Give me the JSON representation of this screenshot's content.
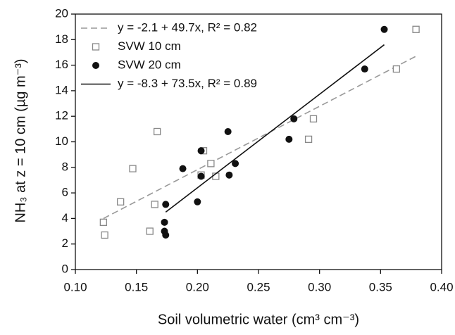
{
  "chart_data": {
    "type": "scatter",
    "x_label": "Soil volumetric water (cm³ cm⁻³)",
    "y_label": "NH₃ at z = 10 cm (µg m⁻³)",
    "xlim": [
      0.1,
      0.4
    ],
    "xticks": [
      {
        "value": 0.1,
        "label": "0.10"
      },
      {
        "value": 0.15,
        "label": "0.15"
      },
      {
        "value": 0.2,
        "label": "0.20"
      },
      {
        "value": 0.25,
        "label": "0.25"
      },
      {
        "value": 0.3,
        "label": "0.30"
      },
      {
        "value": 0.35,
        "label": "0.35"
      },
      {
        "value": 0.4,
        "label": "0.40"
      }
    ],
    "ylim": [
      0,
      20
    ],
    "yticks": [
      0,
      2,
      4,
      6,
      8,
      10,
      12,
      14,
      16,
      18,
      20
    ],
    "legend": "top-left",
    "series": [
      {
        "name": "y = -2.1 + 49.7x, R² = 0.82",
        "kind": "line",
        "style": "dashed",
        "color": "#999999",
        "x": [
          0.123,
          0.379
        ],
        "values": [
          4.0,
          16.7
        ]
      },
      {
        "name": "SVW 10 cm",
        "kind": "marker",
        "marker": "square-open",
        "color": "#888888",
        "x": [
          0.123,
          0.124,
          0.137,
          0.147,
          0.161,
          0.165,
          0.167,
          0.203,
          0.205,
          0.211,
          0.215,
          0.291,
          0.295,
          0.363,
          0.379
        ],
        "values": [
          3.7,
          2.7,
          5.3,
          7.9,
          3.0,
          5.1,
          10.8,
          7.4,
          9.3,
          8.3,
          7.3,
          10.2,
          11.8,
          15.7,
          18.8
        ]
      },
      {
        "name": "SVW 20 cm",
        "kind": "marker",
        "marker": "circle-filled",
        "color": "#111111",
        "x": [
          0.174,
          0.173,
          0.173,
          0.174,
          0.188,
          0.2,
          0.203,
          0.203,
          0.225,
          0.226,
          0.231,
          0.275,
          0.279,
          0.337,
          0.353
        ],
        "values": [
          5.1,
          3.7,
          3.0,
          2.7,
          7.9,
          5.3,
          9.3,
          7.3,
          10.8,
          7.4,
          8.3,
          10.2,
          11.8,
          15.7,
          18.8
        ]
      },
      {
        "name": "y = -8.3 + 73.5x, R² = 0.89",
        "kind": "line",
        "style": "solid",
        "color": "#111111",
        "x": [
          0.174,
          0.353
        ],
        "values": [
          4.5,
          17.6
        ]
      }
    ]
  }
}
